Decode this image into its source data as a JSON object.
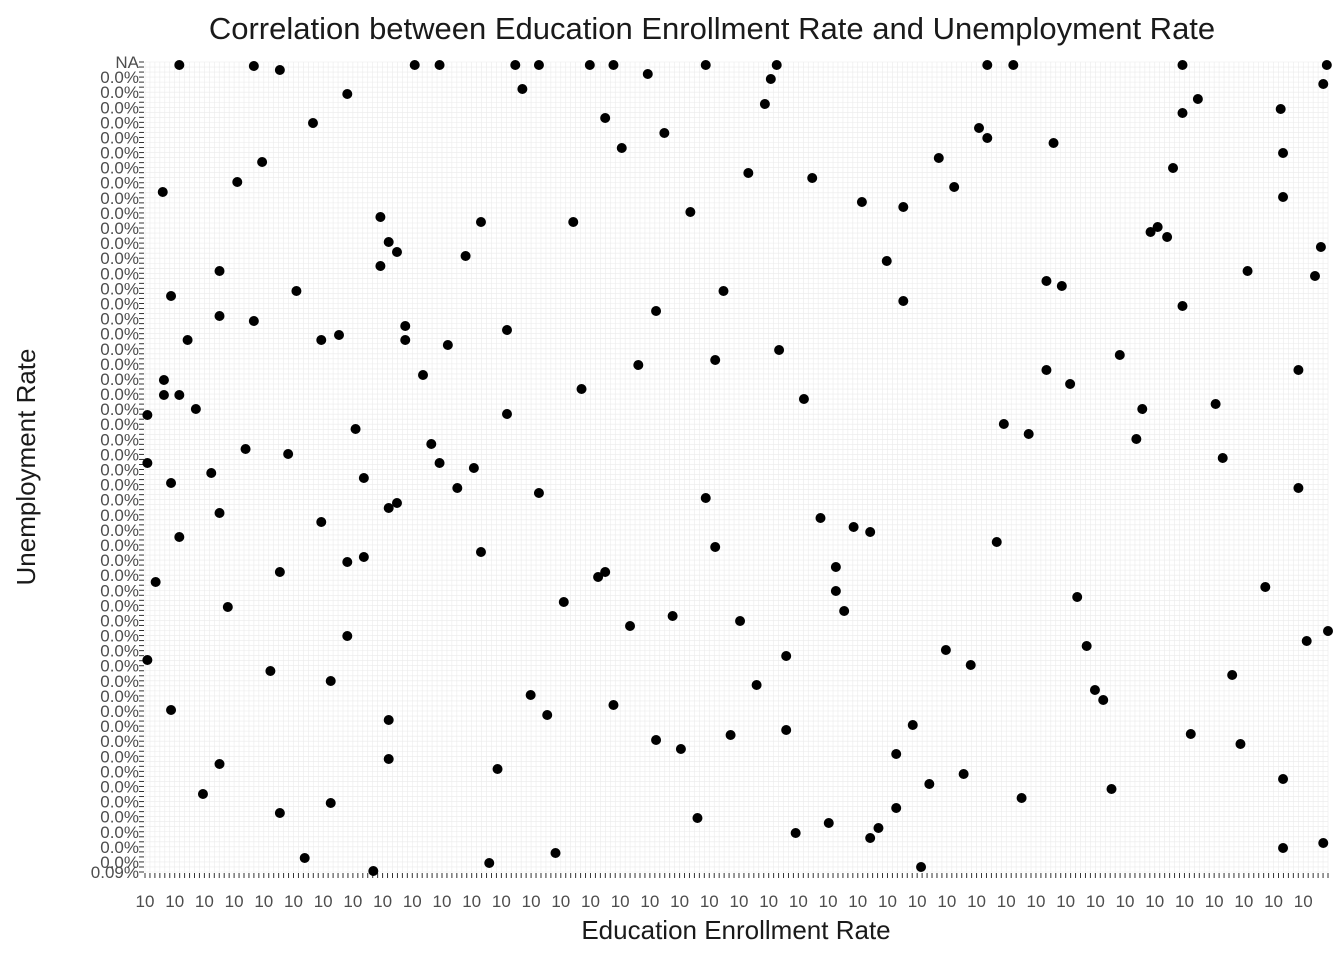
{
  "chart_data": {
    "type": "scatter",
    "title": "Correlation between Education Enrollment Rate and Unemployment Rate",
    "xlabel": "Education Enrollment Rate",
    "ylabel": "Unemployment Rate",
    "grid": true,
    "legend": "none",
    "x_axis": {
      "kind": "categorical",
      "count": 240,
      "tick_label_pattern": "10..."
    },
    "y_axis": {
      "kind": "categorical",
      "count": 162,
      "top_label": "NA",
      "bottom_label": "0.09%"
    },
    "points": [
      [
        0.2,
        415
      ],
      [
        0.2,
        463
      ],
      [
        0.2,
        660
      ],
      [
        0.9,
        582
      ],
      [
        1.5,
        192
      ],
      [
        1.6,
        380
      ],
      [
        1.6,
        395
      ],
      [
        2.2,
        296
      ],
      [
        2.2,
        483
      ],
      [
        2.2,
        710
      ],
      [
        2.9,
        65
      ],
      [
        2.9,
        395
      ],
      [
        2.9,
        537
      ],
      [
        3.6,
        340
      ],
      [
        4.3,
        409
      ],
      [
        4.9,
        794
      ],
      [
        5.6,
        473
      ],
      [
        6.3,
        271
      ],
      [
        6.3,
        316
      ],
      [
        6.3,
        513
      ],
      [
        6.3,
        764
      ],
      [
        7,
        607
      ],
      [
        7.8,
        182
      ],
      [
        8.5,
        449
      ],
      [
        9.2,
        66
      ],
      [
        9.2,
        321
      ],
      [
        9.9,
        162
      ],
      [
        10.6,
        671
      ],
      [
        11.4,
        70
      ],
      [
        11.4,
        572
      ],
      [
        11.4,
        813
      ],
      [
        12.1,
        454
      ],
      [
        12.8,
        291
      ],
      [
        13.5,
        858
      ],
      [
        14.2,
        123
      ],
      [
        14.9,
        522
      ],
      [
        14.9,
        340
      ],
      [
        15.7,
        681
      ],
      [
        15.7,
        803
      ],
      [
        16.4,
        335
      ],
      [
        17.1,
        94
      ],
      [
        17.1,
        562
      ],
      [
        17.1,
        636
      ],
      [
        17.8,
        429
      ],
      [
        18.5,
        478
      ],
      [
        18.5,
        557
      ],
      [
        19.3,
        871
      ],
      [
        19.9,
        217
      ],
      [
        19.9,
        266
      ],
      [
        20.6,
        242
      ],
      [
        20.6,
        508
      ],
      [
        20.6,
        720
      ],
      [
        20.6,
        759
      ],
      [
        21.3,
        252
      ],
      [
        21.3,
        503
      ],
      [
        22,
        326
      ],
      [
        22,
        340
      ],
      [
        22.8,
        65
      ],
      [
        23.5,
        375
      ],
      [
        24.2,
        444
      ],
      [
        24.9,
        65
      ],
      [
        24.9,
        463
      ],
      [
        25.6,
        345
      ],
      [
        26.4,
        488
      ],
      [
        27.1,
        256
      ],
      [
        27.8,
        468
      ],
      [
        28.4,
        222
      ],
      [
        28.4,
        552
      ],
      [
        29.1,
        863
      ],
      [
        29.8,
        769
      ],
      [
        30.6,
        414
      ],
      [
        30.6,
        330
      ],
      [
        31.3,
        65
      ],
      [
        31.9,
        89
      ],
      [
        32.6,
        695
      ],
      [
        33.3,
        65
      ],
      [
        33.3,
        493
      ],
      [
        34,
        715
      ],
      [
        34.7,
        853
      ],
      [
        35.4,
        602
      ],
      [
        36.2,
        222
      ],
      [
        36.9,
        389
      ],
      [
        37.6,
        65
      ],
      [
        38.3,
        577
      ],
      [
        38.9,
        118
      ],
      [
        38.9,
        572
      ],
      [
        39.6,
        65
      ],
      [
        39.6,
        705
      ],
      [
        40.3,
        148
      ],
      [
        41,
        626
      ],
      [
        41.7,
        365
      ],
      [
        42.5,
        74
      ],
      [
        43.2,
        740
      ],
      [
        43.2,
        311
      ],
      [
        43.9,
        133
      ],
      [
        44.6,
        616
      ],
      [
        45.3,
        749
      ],
      [
        46.1,
        212
      ],
      [
        46.7,
        818
      ],
      [
        47.4,
        65
      ],
      [
        47.4,
        498
      ],
      [
        48.2,
        547
      ],
      [
        48.2,
        360
      ],
      [
        48.9,
        291
      ],
      [
        49.5,
        735
      ],
      [
        50.3,
        621
      ],
      [
        51,
        173
      ],
      [
        51.7,
        685
      ],
      [
        52.4,
        104
      ],
      [
        52.9,
        79
      ],
      [
        53.4,
        65
      ],
      [
        53.6,
        350
      ],
      [
        54.2,
        656
      ],
      [
        54.2,
        730
      ],
      [
        55,
        833
      ],
      [
        55.7,
        399
      ],
      [
        56.4,
        178
      ],
      [
        57.1,
        518
      ],
      [
        57.8,
        823
      ],
      [
        58.4,
        567
      ],
      [
        58.4,
        591
      ],
      [
        59.1,
        611
      ],
      [
        59.9,
        527
      ],
      [
        60.6,
        202
      ],
      [
        61.3,
        838
      ],
      [
        61.3,
        532
      ],
      [
        62,
        828
      ],
      [
        62.7,
        261
      ],
      [
        63.5,
        808
      ],
      [
        63.5,
        754
      ],
      [
        64.1,
        207
      ],
      [
        64.1,
        301
      ],
      [
        64.9,
        725
      ],
      [
        65.6,
        867
      ],
      [
        66.3,
        784
      ],
      [
        67.1,
        158
      ],
      [
        67.7,
        650
      ],
      [
        68.4,
        187
      ],
      [
        69.2,
        774
      ],
      [
        69.8,
        665
      ],
      [
        70.5,
        128
      ],
      [
        71.2,
        138
      ],
      [
        71.2,
        65
      ],
      [
        72,
        542
      ],
      [
        72.6,
        424
      ],
      [
        73.4,
        65
      ],
      [
        74.1,
        798
      ],
      [
        74.7,
        434
      ],
      [
        76.2,
        370
      ],
      [
        76.2,
        281
      ],
      [
        76.8,
        143
      ],
      [
        77.5,
        286
      ],
      [
        78.2,
        384
      ],
      [
        78.8,
        597
      ],
      [
        79.6,
        646
      ],
      [
        80.3,
        690
      ],
      [
        81,
        700
      ],
      [
        81.7,
        789
      ],
      [
        82.4,
        355
      ],
      [
        83.8,
        439
      ],
      [
        84.3,
        409
      ],
      [
        85,
        232
      ],
      [
        85.6,
        227
      ],
      [
        86.4,
        237
      ],
      [
        86.9,
        168
      ],
      [
        87.7,
        65
      ],
      [
        87.7,
        113
      ],
      [
        87.7,
        306
      ],
      [
        88.4,
        734
      ],
      [
        89,
        99
      ],
      [
        90.5,
        404
      ],
      [
        91.1,
        458
      ],
      [
        91.9,
        675
      ],
      [
        92.6,
        744
      ],
      [
        93.2,
        271
      ],
      [
        94.7,
        587
      ],
      [
        96,
        109
      ],
      [
        96.2,
        197
      ],
      [
        96.2,
        153
      ],
      [
        96.2,
        779
      ],
      [
        96.2,
        848
      ],
      [
        97.5,
        370
      ],
      [
        97.5,
        488
      ],
      [
        98.2,
        641
      ],
      [
        98.9,
        276
      ],
      [
        99.4,
        247
      ],
      [
        99.6,
        84
      ],
      [
        99.6,
        843
      ],
      [
        99.9,
        65
      ],
      [
        100,
        631
      ]
    ]
  }
}
